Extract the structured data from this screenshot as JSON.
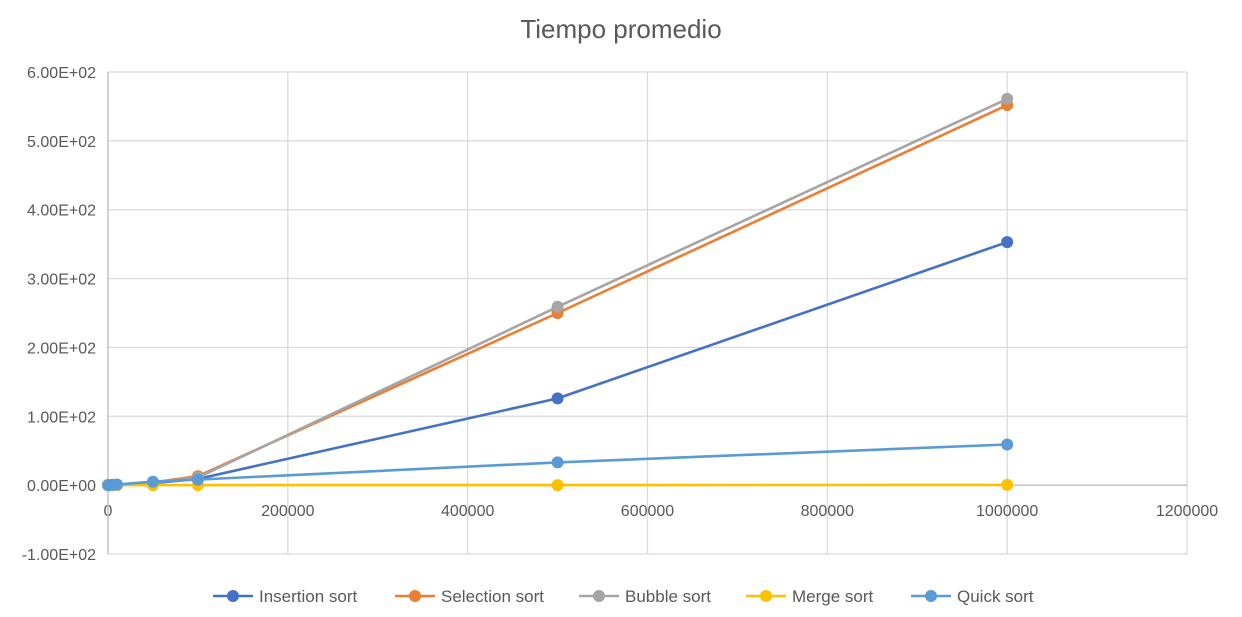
{
  "chart_data": {
    "type": "line",
    "title": "Tiempo promedio",
    "xlabel": "",
    "ylabel": "",
    "xlim": [
      0,
      1200000
    ],
    "ylim": [
      -100,
      600
    ],
    "x_ticks": [
      0,
      200000,
      400000,
      600000,
      800000,
      1000000,
      1200000
    ],
    "x_tick_labels": [
      "0",
      "200000",
      "400000",
      "600000",
      "800000",
      "1000000",
      "1200000"
    ],
    "y_ticks": [
      -100,
      0,
      100,
      200,
      300,
      400,
      500,
      600
    ],
    "y_tick_labels": [
      "-1.00E+02",
      "0.00E+00",
      "1.00E+02",
      "2.00E+02",
      "3.00E+02",
      "4.00E+02",
      "5.00E+02",
      "6.00E+02"
    ],
    "grid": true,
    "legend_position": "bottom",
    "series": [
      {
        "name": "Insertion sort",
        "color": "#4472C4",
        "points": [
          [
            100,
            0
          ],
          [
            1000,
            0
          ],
          [
            5000,
            0.05
          ],
          [
            10000,
            0.2
          ],
          [
            50000,
            3
          ],
          [
            100000,
            9
          ],
          [
            500000,
            126
          ],
          [
            1000000,
            353
          ]
        ]
      },
      {
        "name": "Selection sort",
        "color": "#ED7D31",
        "points": [
          [
            100,
            0
          ],
          [
            1000,
            0
          ],
          [
            5000,
            0.1
          ],
          [
            10000,
            0.4
          ],
          [
            50000,
            4
          ],
          [
            100000,
            13
          ],
          [
            500000,
            250
          ],
          [
            1000000,
            552
          ]
        ]
      },
      {
        "name": "Bubble sort",
        "color": "#A5A5A5",
        "points": [
          [
            100,
            0
          ],
          [
            1000,
            0
          ],
          [
            5000,
            0.1
          ],
          [
            10000,
            0.5
          ],
          [
            50000,
            4
          ],
          [
            100000,
            11
          ],
          [
            500000,
            259
          ],
          [
            1000000,
            561
          ]
        ]
      },
      {
        "name": "Merge sort",
        "color": "#FFC000",
        "points": [
          [
            100,
            0
          ],
          [
            1000,
            0
          ],
          [
            5000,
            0
          ],
          [
            10000,
            0
          ],
          [
            50000,
            0
          ],
          [
            100000,
            0
          ],
          [
            500000,
            0.1
          ],
          [
            1000000,
            0.3
          ]
        ]
      },
      {
        "name": "Quick sort",
        "color": "#5B9BD5",
        "points": [
          [
            100,
            0
          ],
          [
            1000,
            0.1
          ],
          [
            5000,
            0.3
          ],
          [
            10000,
            1
          ],
          [
            50000,
            5
          ],
          [
            100000,
            8
          ],
          [
            500000,
            33
          ],
          [
            1000000,
            59
          ]
        ]
      }
    ]
  }
}
